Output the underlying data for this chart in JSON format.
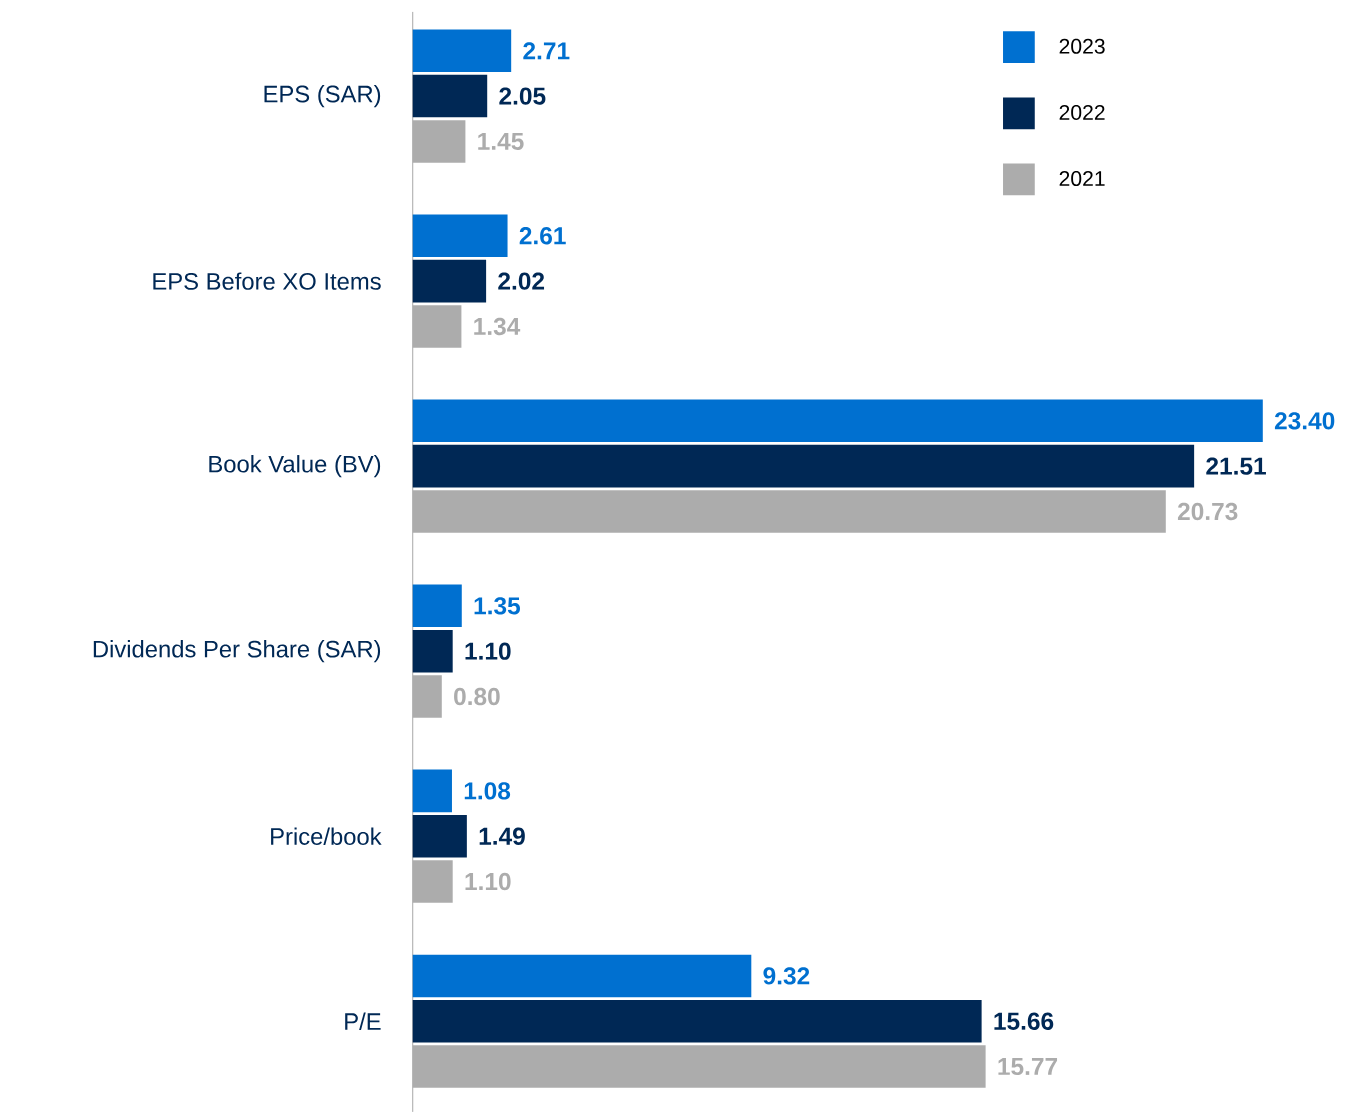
{
  "chart_data": {
    "type": "bar",
    "orientation": "horizontal",
    "categories": [
      "EPS (SAR)",
      "EPS Before XO Items",
      "Book Value (BV)",
      "Dividends Per Share (SAR)",
      "Price/book",
      "P/E"
    ],
    "series": [
      {
        "name": "2023",
        "color": "#0070d0",
        "values": [
          2.71,
          2.61,
          23.4,
          1.35,
          1.08,
          9.32
        ],
        "value_labels": [
          "2.71",
          "2.61",
          "23.40",
          "1.35",
          "1.08",
          "9.32"
        ]
      },
      {
        "name": "2022",
        "color": "#002855",
        "values": [
          2.05,
          2.02,
          21.51,
          1.1,
          1.49,
          15.66
        ],
        "value_labels": [
          "2.05",
          "2.02",
          "21.51",
          "1.10",
          "1.49",
          "15.66"
        ]
      },
      {
        "name": "2021",
        "color": "#acacac",
        "values": [
          1.45,
          1.34,
          20.73,
          0.8,
          1.1,
          15.77
        ],
        "value_labels": [
          "1.45",
          "1.34",
          "20.73",
          "0.80",
          "1.10",
          "15.77"
        ]
      }
    ],
    "legend": "top right"
  }
}
